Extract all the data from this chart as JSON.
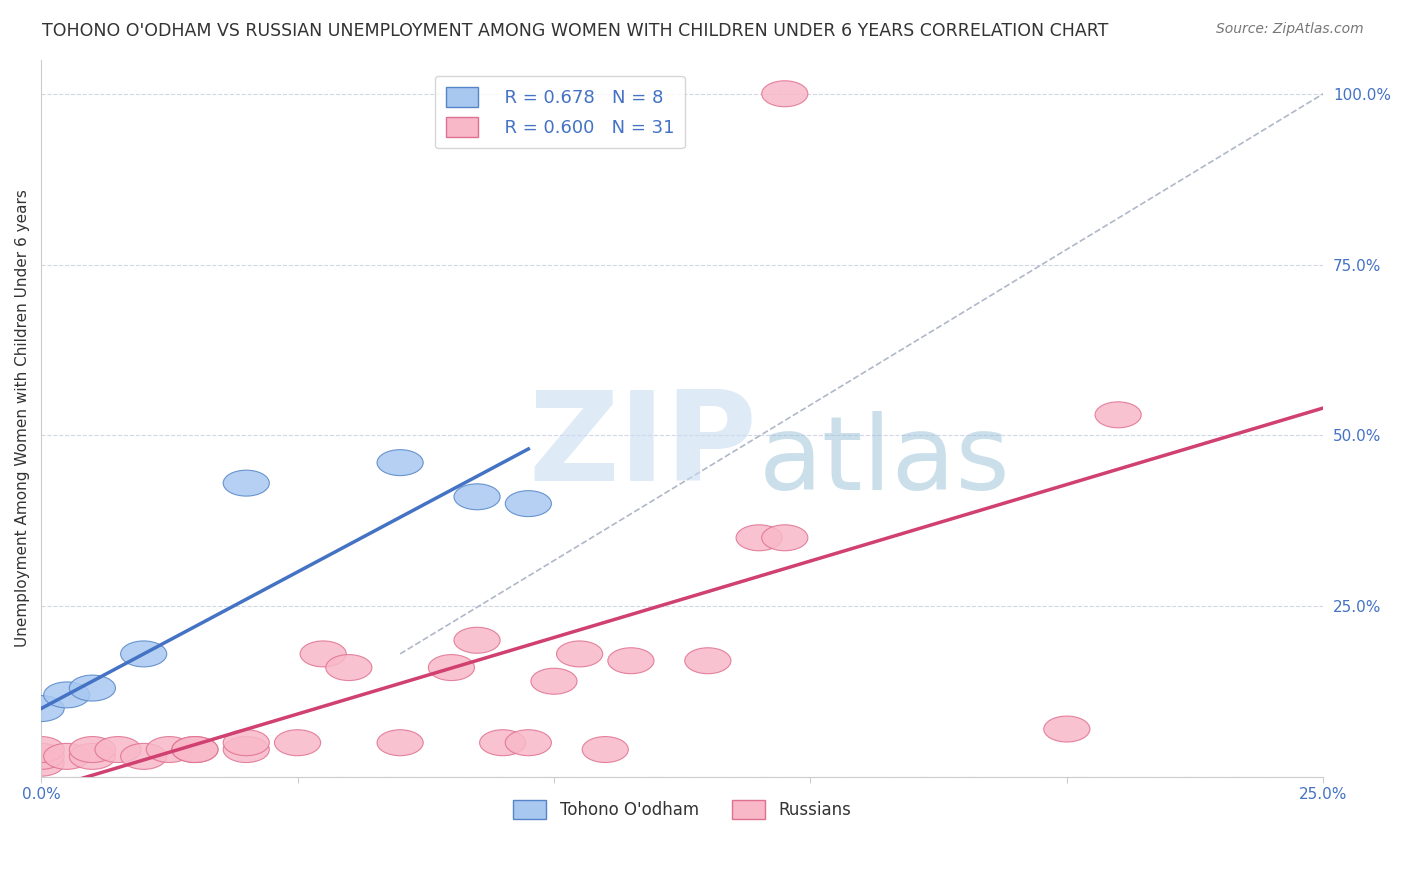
{
  "title": "TOHONO O'ODHAM VS RUSSIAN UNEMPLOYMENT AMONG WOMEN WITH CHILDREN UNDER 6 YEARS CORRELATION CHART",
  "source": "Source: ZipAtlas.com",
  "ylabel": "Unemployment Among Women with Children Under 6 years",
  "xlim": [
    0.0,
    0.25
  ],
  "ylim": [
    0.0,
    1.05
  ],
  "xtick_positions": [
    0.0,
    0.05,
    0.1,
    0.15,
    0.2,
    0.25
  ],
  "xtick_labels": [
    "0.0%",
    "",
    "",
    "",
    "",
    "25.0%"
  ],
  "ytick_positions_right": [
    0.0,
    0.25,
    0.5,
    0.75,
    1.0
  ],
  "ytick_labels_right": [
    "",
    "25.0%",
    "50.0%",
    "75.0%",
    "100.0%"
  ],
  "background_color": "#ffffff",
  "tohono_fill_color": "#a8c8f0",
  "tohono_edge_color": "#5585c8",
  "russian_fill_color": "#f8b8c8",
  "russian_edge_color": "#e07090",
  "tohono_line_color": "#4472c4",
  "russian_line_color": "#d04070",
  "ref_line_color": "#b0b8c8",
  "grid_color": "#d0d8e8",
  "R_tohono": 0.678,
  "N_tohono": 8,
  "R_russian": 0.6,
  "N_russian": 31,
  "tohono_points": [
    [
      0.0,
      0.1
    ],
    [
      0.005,
      0.12
    ],
    [
      0.01,
      0.13
    ],
    [
      0.02,
      0.18
    ],
    [
      0.04,
      0.43
    ],
    [
      0.07,
      0.46
    ],
    [
      0.085,
      0.41
    ],
    [
      0.095,
      0.4
    ]
  ],
  "russian_points": [
    [
      0.0,
      0.02
    ],
    [
      0.0,
      0.03
    ],
    [
      0.0,
      0.04
    ],
    [
      0.005,
      0.03
    ],
    [
      0.01,
      0.03
    ],
    [
      0.01,
      0.04
    ],
    [
      0.015,
      0.04
    ],
    [
      0.02,
      0.03
    ],
    [
      0.025,
      0.04
    ],
    [
      0.03,
      0.04
    ],
    [
      0.03,
      0.04
    ],
    [
      0.04,
      0.04
    ],
    [
      0.04,
      0.05
    ],
    [
      0.05,
      0.05
    ],
    [
      0.055,
      0.18
    ],
    [
      0.06,
      0.16
    ],
    [
      0.07,
      0.05
    ],
    [
      0.08,
      0.16
    ],
    [
      0.085,
      0.2
    ],
    [
      0.09,
      0.05
    ],
    [
      0.095,
      0.05
    ],
    [
      0.1,
      0.14
    ],
    [
      0.105,
      0.18
    ],
    [
      0.11,
      0.04
    ],
    [
      0.115,
      0.17
    ],
    [
      0.13,
      0.17
    ],
    [
      0.14,
      0.35
    ],
    [
      0.145,
      0.35
    ],
    [
      0.2,
      0.07
    ],
    [
      0.21,
      0.53
    ],
    [
      0.145,
      1.0
    ]
  ],
  "tohono_trend": [
    0.0,
    0.1,
    0.095,
    0.48
  ],
  "russian_trend": [
    0.0,
    -0.02,
    0.25,
    0.54
  ],
  "ref_line": [
    0.07,
    0.18,
    0.25,
    1.0
  ]
}
